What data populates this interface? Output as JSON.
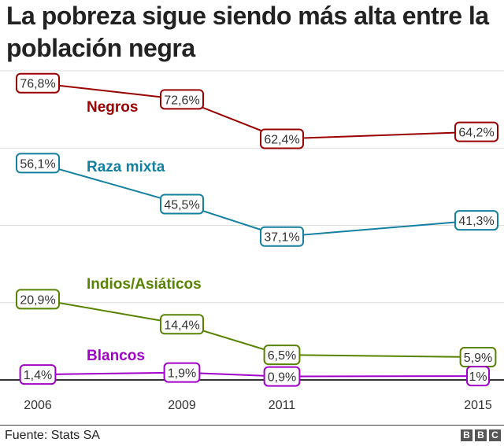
{
  "title": "La pobreza sigue siendo más alta entre la población negra",
  "source": "Fuente: Stats SA",
  "logo_letters": [
    "B",
    "B",
    "C"
  ],
  "chart_data": {
    "type": "line",
    "x": [
      "2006",
      "2009",
      "2011",
      "2015"
    ],
    "ylim": [
      0,
      80
    ],
    "grid": true,
    "series": [
      {
        "name": "Negros",
        "color": "#990000",
        "values": [
          76.8,
          72.6,
          62.4,
          64.2
        ],
        "labels": [
          "76,8%",
          "72,6%",
          "62,4%",
          "64,2%"
        ]
      },
      {
        "name": "Raza mixta",
        "color": "#1380A1",
        "values": [
          56.1,
          45.5,
          37.1,
          41.3
        ],
        "labels": [
          "56,1%",
          "45,5%",
          "37,1%",
          "41,3%"
        ]
      },
      {
        "name": "Indios/Asiáticos",
        "color": "#588300",
        "values": [
          20.9,
          14.4,
          6.5,
          5.9
        ],
        "labels": [
          "20,9%",
          "14,4%",
          "6,5%",
          "5,9%"
        ]
      },
      {
        "name": "Blancos",
        "color": "#A000C8",
        "values": [
          1.4,
          1.9,
          0.9,
          1.0
        ],
        "labels": [
          "1,4%",
          "1,9%",
          "0,9%",
          "1%"
        ]
      }
    ]
  }
}
